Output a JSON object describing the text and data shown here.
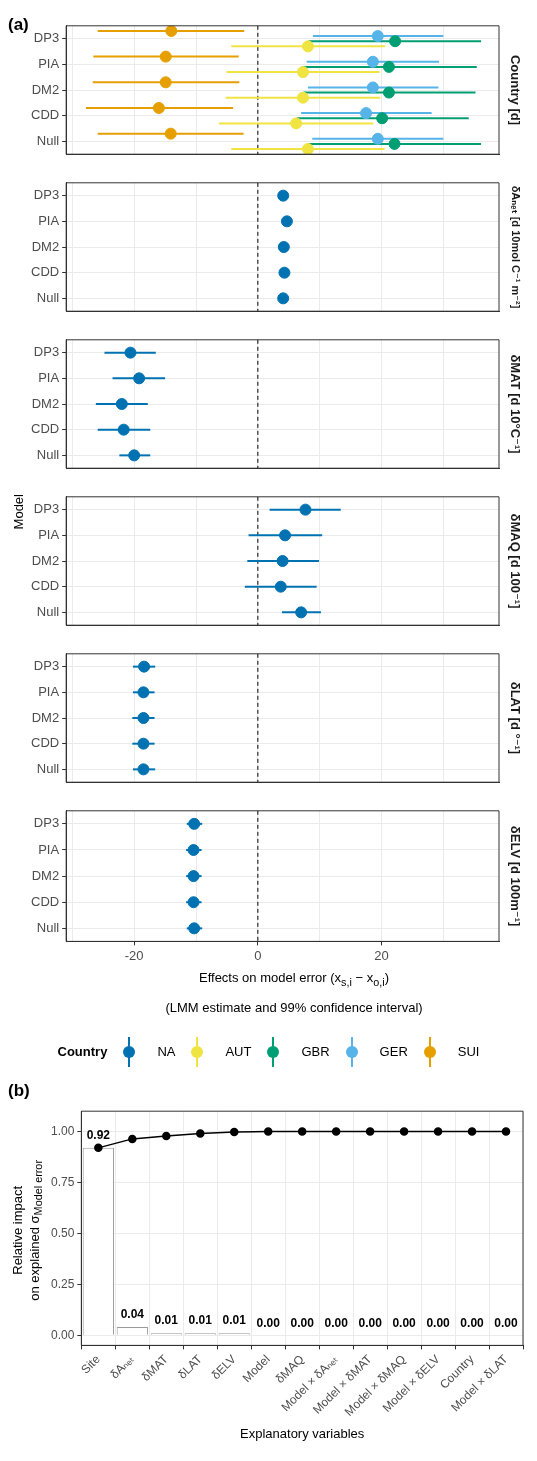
{
  "chart_data": [
    {
      "type": "scatter",
      "orientation": "horizontal",
      "y2label": "Country [d]",
      "annotations": [
        "(a)"
      ],
      "legend": "bottom",
      "categories": [
        "DP3",
        "PIA",
        "DM2",
        "CDD",
        "Null"
      ],
      "xlim": [
        -31,
        39
      ],
      "xticks": [
        {
          "value": -30,
          "label": null
        },
        -20,
        {
          "value": -10,
          "label": null
        },
        0,
        {
          "value": 10,
          "label": null
        },
        20,
        {
          "value": 30,
          "label": null
        }
      ],
      "tick_labels": "y",
      "grid": true,
      "marker": "circle",
      "ref_lines": [
        {
          "axis": "x",
          "value": 0,
          "color": "#000000",
          "line_style": "dashed"
        }
      ],
      "series": [
        {
          "name": "AUT",
          "color": "#f0e442",
          "values": [
            8.1,
            7.3,
            7.3,
            6.2,
            8.1
          ],
          "errors": [
            [
              -4.3,
              20.6
            ],
            [
              -5.1,
              19.7
            ],
            [
              -5.2,
              19.8
            ],
            [
              -6.3,
              18.7
            ],
            [
              -4.3,
              20.5
            ]
          ]
        },
        {
          "name": "GBR",
          "color": "#009e73",
          "values": [
            22.2,
            21.2,
            21.2,
            20.1,
            22.1
          ],
          "errors": [
            [
              8.2,
              36.1
            ],
            [
              7.1,
              35.4
            ],
            [
              7.4,
              35.2
            ],
            [
              6.3,
              34.1
            ],
            [
              8.1,
              36.1
            ]
          ]
        },
        {
          "name": "GER",
          "color": "#56b4e9",
          "values": [
            19.4,
            18.6,
            18.6,
            17.5,
            19.4
          ],
          "errors": [
            [
              8.9,
              30.0
            ],
            [
              7.9,
              29.3
            ],
            [
              8.1,
              29.2
            ],
            [
              7.0,
              28.1
            ],
            [
              8.8,
              30.0
            ]
          ]
        },
        {
          "name": "SUI",
          "color": "#e69f00",
          "values": [
            -14.0,
            -14.9,
            -14.9,
            -16.0,
            -14.1
          ],
          "errors": [
            [
              -25.9,
              -2.2
            ],
            [
              -26.6,
              -3.1
            ],
            [
              -26.7,
              -3.0
            ],
            [
              -27.8,
              -4.0
            ],
            [
              -25.9,
              -2.3
            ]
          ]
        }
      ]
    },
    {
      "type": "scatter",
      "orientation": "horizontal",
      "y2label": "δAₙₑₜ [d 10mol C⁻¹ m⁻²]",
      "categories": [
        "DP3",
        "PIA",
        "DM2",
        "CDD",
        "Null"
      ],
      "xlim": [
        -31,
        39
      ],
      "xticks": [
        {
          "value": -30,
          "label": null
        },
        -20,
        {
          "value": -10,
          "label": null
        },
        0,
        {
          "value": 10,
          "label": null
        },
        20,
        {
          "value": 30,
          "label": null
        }
      ],
      "tick_labels": "y",
      "grid": true,
      "marker": "circle",
      "ref_lines": [
        {
          "axis": "x",
          "value": 0,
          "color": "#000000",
          "line_style": "dashed"
        }
      ],
      "series": [
        {
          "color": "#0072b2",
          "values": [
            4.1,
            4.7,
            4.2,
            4.3,
            4.1
          ]
        }
      ]
    },
    {
      "type": "scatter",
      "orientation": "horizontal",
      "y2label": "δMAT [d 10°C⁻¹]",
      "ylabel": "Model",
      "categories": [
        "DP3",
        "PIA",
        "DM2",
        "CDD",
        "Null"
      ],
      "xlim": [
        -31,
        39
      ],
      "xticks": [
        {
          "value": -30,
          "label": null
        },
        -20,
        {
          "value": -10,
          "label": null
        },
        0,
        {
          "value": 10,
          "label": null
        },
        20,
        {
          "value": 30,
          "label": null
        }
      ],
      "tick_labels": "y",
      "grid": true,
      "marker": "circle",
      "ref_lines": [
        {
          "axis": "x",
          "value": 0,
          "color": "#000000",
          "line_style": "dashed"
        }
      ],
      "series": [
        {
          "color": "#0072b2",
          "values": [
            -20.6,
            -19.2,
            -22.0,
            -21.7,
            -20.0
          ],
          "errors": [
            [
              -24.8,
              -16.5
            ],
            [
              -23.5,
              -15.0
            ],
            [
              -26.2,
              -17.8
            ],
            [
              -25.9,
              -17.4
            ],
            [
              -22.4,
              -17.4
            ]
          ]
        }
      ]
    },
    {
      "type": "scatter",
      "orientation": "horizontal",
      "y2label": "δMAQ [d 100⁻¹]",
      "categories": [
        "DP3",
        "PIA",
        "DM2",
        "CDD",
        "Null"
      ],
      "xlim": [
        -31,
        39
      ],
      "xticks": [
        {
          "value": -30,
          "label": null
        },
        -20,
        {
          "value": -10,
          "label": null
        },
        0,
        {
          "value": 10,
          "label": null
        },
        20,
        {
          "value": 30,
          "label": null
        }
      ],
      "tick_labels": "y",
      "grid": true,
      "marker": "circle",
      "ref_lines": [
        {
          "axis": "x",
          "value": 0,
          "color": "#000000",
          "line_style": "dashed"
        }
      ],
      "series": [
        {
          "color": "#0072b2",
          "values": [
            7.7,
            4.4,
            4.0,
            3.7,
            7.0
          ],
          "errors": [
            [
              1.9,
              13.4
            ],
            [
              -1.5,
              10.4
            ],
            [
              -1.7,
              9.9
            ],
            [
              -2.1,
              9.5
            ],
            [
              3.9,
              10.2
            ]
          ]
        }
      ]
    },
    {
      "type": "scatter",
      "orientation": "horizontal",
      "y2label": "δLAT [d °⁻¹]",
      "categories": [
        "DP3",
        "PIA",
        "DM2",
        "CDD",
        "Null"
      ],
      "xlim": [
        -31,
        39
      ],
      "xticks": [
        {
          "value": -30,
          "label": null
        },
        -20,
        {
          "value": -10,
          "label": null
        },
        0,
        {
          "value": 10,
          "label": null
        },
        20,
        {
          "value": 30,
          "label": null
        }
      ],
      "tick_labels": "y",
      "grid": true,
      "marker": "circle",
      "ref_lines": [
        {
          "axis": "x",
          "value": 0,
          "color": "#000000",
          "line_style": "dashed"
        }
      ],
      "series": [
        {
          "color": "#0072b2",
          "values": [
            -18.4,
            -18.5,
            -18.5,
            -18.5,
            -18.5
          ],
          "errors": [
            [
              -20.2,
              -16.6
            ],
            [
              -20.2,
              -16.7
            ],
            [
              -20.3,
              -16.7
            ],
            [
              -20.3,
              -16.7
            ],
            [
              -20.2,
              -16.6
            ]
          ]
        }
      ]
    },
    {
      "type": "scatter",
      "orientation": "horizontal",
      "y2label": "δELV [d 100m⁻¹]",
      "xlabel": "Effects on model error (x$_{s,i}$ − x$_{o,i}$)",
      "annotations": [
        "(LMM estimate and 99% confidence interval)"
      ],
      "legend": "bottom",
      "legend_title": "Country",
      "categories": [
        "DP3",
        "PIA",
        "DM2",
        "CDD",
        "Null"
      ],
      "xlim": [
        -31,
        39
      ],
      "xticks": [
        {
          "value": -30,
          "label": null
        },
        -20,
        {
          "value": -10,
          "label": null
        },
        0,
        {
          "value": 10,
          "label": null
        },
        20,
        {
          "value": 30,
          "label": null
        }
      ],
      "grid": true,
      "marker": "circle",
      "ref_lines": [
        {
          "axis": "x",
          "value": 0,
          "color": "#000000",
          "line_style": "dashed"
        }
      ],
      "series": [
        {
          "name": "NA",
          "color": "#0072b2",
          "values": [
            -10.3,
            -10.4,
            -10.4,
            -10.4,
            -10.3
          ],
          "errors": [
            [
              -11.5,
              -9.0
            ],
            [
              -11.6,
              -9.1
            ],
            [
              -11.6,
              -9.1
            ],
            [
              -11.6,
              -9.1
            ],
            [
              -11.5,
              -9.0
            ]
          ]
        }
      ]
    },
    {
      "type": "bar",
      "title": "(b)",
      "xlabel": "Explanatory variables",
      "ylabel": "Relative impact\non explained σ$_{Model error}$",
      "categories": [
        "Site",
        "δAₙₑₜ",
        "δMAT",
        "δLAT",
        "δELV",
        "Model",
        "δMAQ",
        "Model × δAₙₑₜ",
        "Model × δMAT",
        "Model × δMAQ",
        "Model × δELV",
        "Country",
        "Model × δLAT"
      ],
      "ylim": [
        -0.05,
        1.1
      ],
      "yticks": [
        {
          "value": 0,
          "label": "0.00"
        },
        {
          "value": 0.25,
          "label": "0.25"
        },
        {
          "value": 0.5,
          "label": "0.50"
        },
        {
          "value": 0.75,
          "label": "0.75"
        },
        {
          "value": 1,
          "label": "1.00"
        }
      ],
      "grid": true,
      "marker": "circle",
      "series": [
        {
          "type": "bar",
          "color": "#ffffff",
          "values": [
            0.92,
            0.04,
            0.01,
            0.01,
            0.01,
            0,
            0,
            0,
            0,
            0,
            0,
            0,
            0
          ],
          "value_labels": [
            "0.92",
            "0.04",
            "0.01",
            "0.01",
            "0.01",
            "0.00",
            "0.00",
            "0.00",
            "0.00",
            "0.00",
            "0.00",
            "0.00",
            "0.00"
          ]
        },
        {
          "type": "line",
          "color": "#000000",
          "values": [
            0.92,
            0.964,
            0.978,
            0.991,
            0.998,
            1,
            1,
            1,
            1,
            1,
            1,
            1,
            1
          ]
        }
      ]
    }
  ]
}
